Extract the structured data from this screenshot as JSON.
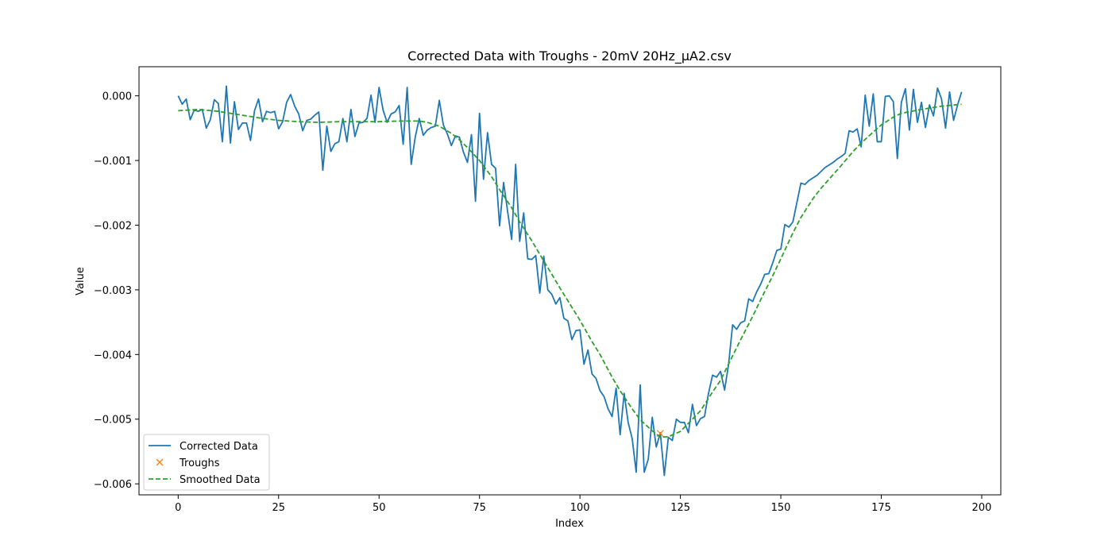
{
  "chart_data": {
    "type": "line",
    "title": "Corrected Data with Troughs - 20mV 20Hz_µA2.csv",
    "xlabel": "Index",
    "ylabel": "Value",
    "xlim": [
      -9.75,
      204.75
    ],
    "ylim": [
      -0.00617,
      0.00045
    ],
    "xticks": [
      0,
      25,
      50,
      75,
      100,
      125,
      150,
      175,
      200
    ],
    "xtick_labels": [
      "0",
      "25",
      "50",
      "75",
      "100",
      "125",
      "150",
      "175",
      "200"
    ],
    "yticks": [
      0.0,
      -0.001,
      -0.002,
      -0.003,
      -0.004,
      -0.005,
      -0.006
    ],
    "ytick_labels": [
      "0.000",
      "−0.001",
      "−0.002",
      "−0.003",
      "−0.004",
      "−0.005",
      "−0.006"
    ],
    "grid": false,
    "legend_position": "lower-left",
    "series": [
      {
        "name": "Corrected Data",
        "color": "#1f77b4",
        "style": "solid",
        "x": [
          0,
          1,
          2,
          3,
          4,
          5,
          6,
          7,
          8,
          9,
          10,
          11,
          12,
          13,
          14,
          15,
          16,
          17,
          18,
          19,
          20,
          21,
          22,
          23,
          24,
          25,
          26,
          27,
          28,
          29,
          30,
          31,
          32,
          33,
          34,
          35,
          36,
          37,
          38,
          39,
          40,
          41,
          42,
          43,
          44,
          45,
          46,
          47,
          48,
          49,
          50,
          51,
          52,
          53,
          54,
          55,
          56,
          57,
          58,
          59,
          60,
          61,
          62,
          63,
          64,
          65,
          66,
          67,
          68,
          69,
          70,
          71,
          72,
          73,
          74,
          75,
          76,
          77,
          78,
          79,
          80,
          81,
          82,
          83,
          84,
          85,
          86,
          87,
          88,
          89,
          90,
          91,
          92,
          93,
          94,
          95,
          96,
          97,
          98,
          99,
          100,
          101,
          102,
          103,
          104,
          105,
          106,
          107,
          108,
          109,
          110,
          111,
          112,
          113,
          114,
          115,
          116,
          117,
          118,
          119,
          120,
          121,
          122,
          123,
          124,
          125,
          126,
          127,
          128,
          129,
          130,
          131,
          132,
          133,
          134,
          135,
          136,
          137,
          138,
          139,
          140,
          141,
          142,
          143,
          144,
          145,
          146,
          147,
          148,
          149,
          150,
          151,
          152,
          153,
          154,
          155,
          156,
          157,
          158,
          159,
          160,
          161,
          162,
          163,
          164,
          165,
          166,
          167,
          168,
          169,
          170,
          171,
          172,
          173,
          174,
          175,
          176,
          177,
          178,
          179,
          180,
          181,
          182,
          183,
          184,
          185,
          186,
          187,
          188,
          189,
          190,
          191,
          192,
          193,
          194,
          195
        ],
        "values": [
          0.0,
          -0.00013,
          -5e-05,
          -0.00037,
          -0.00022,
          -0.00024,
          -0.00021,
          -0.0005,
          -0.00037,
          -6e-05,
          -0.00012,
          -0.00071,
          0.00015,
          -0.00073,
          -9e-05,
          -0.00052,
          -0.00042,
          -0.00042,
          -0.00069,
          -0.00023,
          -5e-05,
          -0.0004,
          -0.00024,
          -0.00026,
          -0.00024,
          -0.00051,
          -0.0004,
          -0.0001,
          2e-05,
          -0.00016,
          -0.00028,
          -0.00054,
          -0.00038,
          -0.00036,
          -0.0003,
          -0.00025,
          -0.00115,
          -0.00047,
          -0.00086,
          -0.00074,
          -0.00071,
          -0.00035,
          -0.00071,
          -0.00021,
          -0.00063,
          -0.00042,
          -0.00041,
          -0.00035,
          1e-05,
          -0.00041,
          0.00013,
          -0.00022,
          -0.00041,
          -0.00028,
          -0.00025,
          -0.00015,
          -0.00075,
          0.00013,
          -0.00106,
          -0.00064,
          -0.00035,
          -0.00061,
          -0.00053,
          -0.00049,
          -0.00047,
          -7e-05,
          -0.00045,
          -0.00059,
          -0.00077,
          -0.00062,
          -0.00064,
          -0.00087,
          -0.00103,
          -0.0006,
          -0.00163,
          -0.00027,
          -0.00129,
          -0.00057,
          -0.00106,
          -0.00112,
          -0.00201,
          -0.00134,
          -0.00179,
          -0.00222,
          -0.00106,
          -0.00225,
          -0.00181,
          -0.00252,
          -0.00253,
          -0.00247,
          -0.00305,
          -0.00248,
          -0.003,
          -0.00307,
          -0.00322,
          -0.00312,
          -0.00344,
          -0.00348,
          -0.00377,
          -0.00363,
          -0.00362,
          -0.00415,
          -0.00393,
          -0.0043,
          -0.00437,
          -0.00456,
          -0.00465,
          -0.00484,
          -0.00496,
          -0.00452,
          -0.00524,
          -0.0046,
          -0.00505,
          -0.0053,
          -0.00582,
          -0.00447,
          -0.00582,
          -0.00562,
          -0.00497,
          -0.00543,
          -0.00521,
          -0.00587,
          -0.00528,
          -0.00533,
          -0.005,
          -0.00505,
          -0.00505,
          -0.00521,
          -0.00477,
          -0.0051,
          -0.00499,
          -0.00496,
          -0.0046,
          -0.00432,
          -0.00435,
          -0.00426,
          -0.00455,
          -0.00415,
          -0.00354,
          -0.00361,
          -0.00351,
          -0.00348,
          -0.00314,
          -0.00318,
          -0.00303,
          -0.00291,
          -0.00276,
          -0.00275,
          -0.00258,
          -0.00239,
          -0.00237,
          -0.00199,
          -0.00203,
          -0.00195,
          -0.00165,
          -0.00135,
          -0.00137,
          -0.00131,
          -0.00127,
          -0.00123,
          -0.00117,
          -0.00111,
          -0.00107,
          -0.00103,
          -0.00098,
          -0.00094,
          -0.00089,
          -0.00054,
          -0.00056,
          -0.00051,
          -0.00079,
          1e-05,
          -0.00047,
          3e-05,
          -0.00071,
          -0.00071,
          -1e-05,
          0.0,
          -9e-05,
          -0.00097,
          -0.0001,
          0.00011,
          -0.00053,
          0.0001,
          -0.00041,
          -0.0001,
          -0.00049,
          -0.00014,
          -0.00031,
          0.00012,
          -5e-05,
          -0.0005,
          6e-05,
          -0.00038,
          -0.00014,
          6e-05
        ]
      },
      {
        "name": "Troughs",
        "color": "#ff7f0e",
        "marker": "x",
        "x": [
          120
        ],
        "values": [
          -0.00522
        ]
      },
      {
        "name": "Smoothed Data",
        "color": "#2ca02c",
        "style": "dashed",
        "x": [
          0,
          5,
          10,
          15,
          20,
          25,
          30,
          35,
          40,
          45,
          50,
          55,
          60,
          62,
          65,
          68,
          70,
          72,
          75,
          78,
          80,
          83,
          85,
          88,
          90,
          93,
          95,
          98,
          100,
          103,
          105,
          108,
          110,
          113,
          115,
          118,
          120,
          122,
          125,
          128,
          130,
          133,
          135,
          138,
          140,
          143,
          145,
          148,
          150,
          153,
          155,
          158,
          160,
          163,
          165,
          168,
          170,
          173,
          175,
          178,
          180,
          185,
          190,
          195
        ],
        "values": [
          -0.00023,
          -0.00021,
          -0.00024,
          -0.00029,
          -0.00034,
          -0.00038,
          -0.0004,
          -0.00041,
          -0.0004,
          -0.0004,
          -0.0004,
          -0.00039,
          -0.00039,
          -0.00041,
          -0.00047,
          -0.00058,
          -0.00068,
          -0.0008,
          -0.001,
          -0.00125,
          -0.00145,
          -0.00173,
          -0.00195,
          -0.00224,
          -0.00245,
          -0.00276,
          -0.00297,
          -0.00327,
          -0.00347,
          -0.0038,
          -0.004,
          -0.00435,
          -0.00456,
          -0.00484,
          -0.00501,
          -0.00518,
          -0.00528,
          -0.00527,
          -0.00519,
          -0.005,
          -0.00487,
          -0.00458,
          -0.0044,
          -0.00402,
          -0.00377,
          -0.00341,
          -0.00315,
          -0.00278,
          -0.00252,
          -0.00212,
          -0.00188,
          -0.00159,
          -0.00143,
          -0.00122,
          -0.00108,
          -0.00086,
          -0.00073,
          -0.00056,
          -0.00045,
          -0.00033,
          -0.00027,
          -0.00021,
          -0.00016,
          -0.00013
        ]
      }
    ],
    "legend": [
      "Corrected Data",
      "Troughs",
      "Smoothed Data"
    ]
  }
}
